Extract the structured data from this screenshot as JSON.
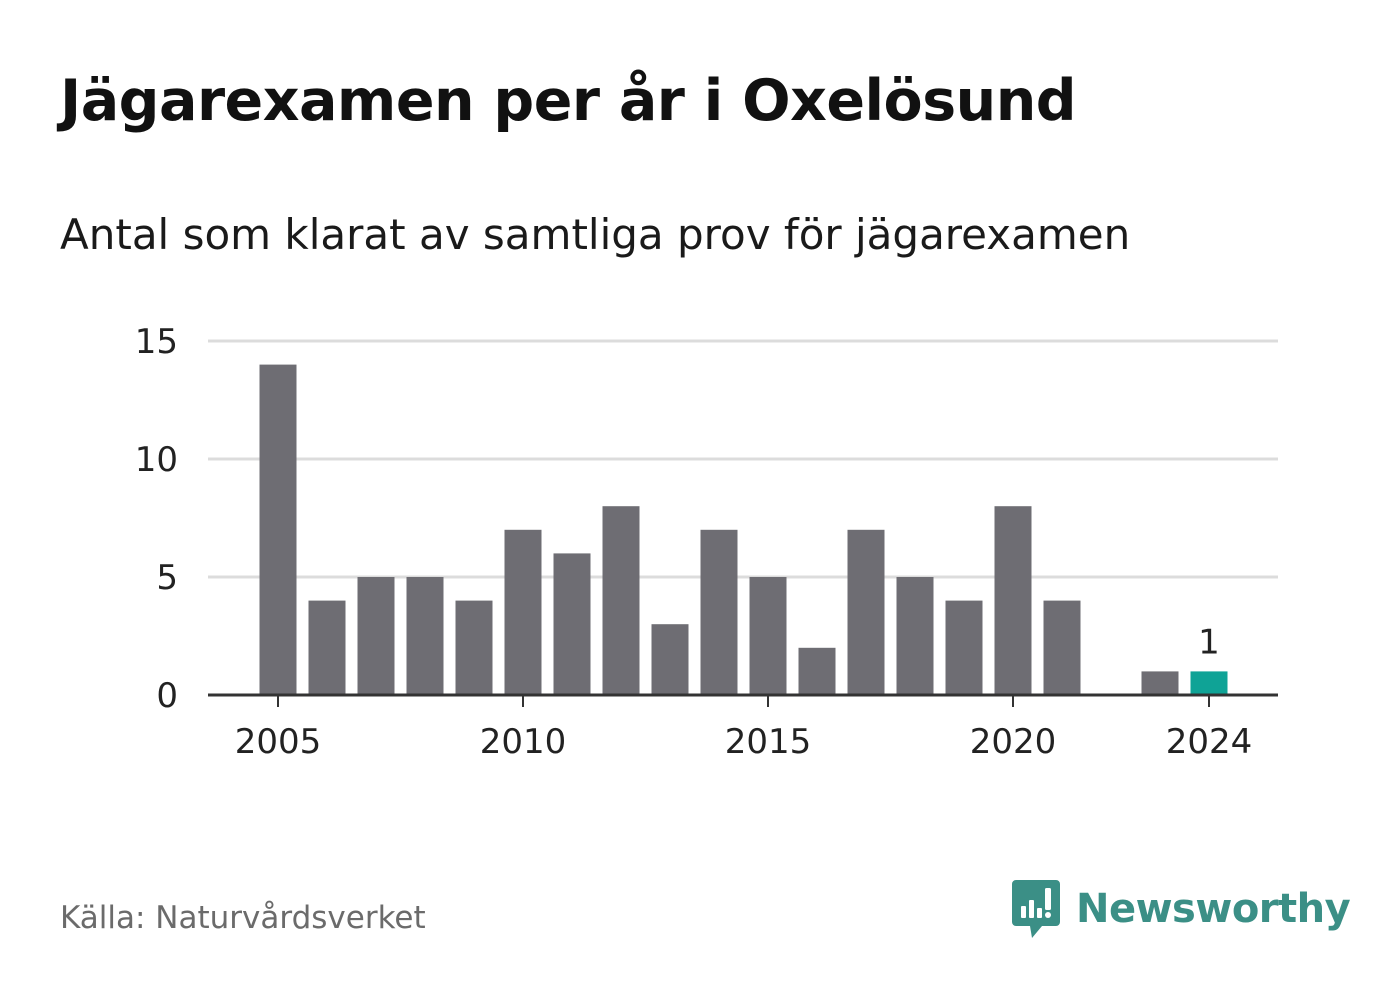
{
  "title": "Jägarexamen per år i Oxelösund",
  "subtitle": "Antal som klarat av samtliga prov för jägarexamen",
  "source": "Källa: Naturvårdsverket",
  "brand": {
    "name": "Newsworthy",
    "icon": "newsworthy-logo-icon",
    "color": "#3b8f86"
  },
  "colors": {
    "bar": "#6e6d73",
    "highlight": "#0fa396",
    "grid": "#dcdcdc",
    "axis": "#333333"
  },
  "chart_data": {
    "type": "bar",
    "x": [
      2005,
      2006,
      2007,
      2008,
      2009,
      2010,
      2011,
      2012,
      2013,
      2014,
      2015,
      2016,
      2017,
      2018,
      2019,
      2020,
      2021,
      2022,
      2023,
      2024
    ],
    "values": [
      14,
      4,
      5,
      5,
      4,
      7,
      6,
      8,
      3,
      7,
      5,
      2,
      7,
      5,
      4,
      8,
      4,
      0,
      1,
      1
    ],
    "highlight_x": 2024,
    "data_labels": [
      {
        "x": 2024,
        "text": "1"
      }
    ],
    "xticks": [
      "2005",
      "2010",
      "2015",
      "2020",
      "2024"
    ],
    "yticks": [
      "0",
      "5",
      "10",
      "15"
    ],
    "ylim": [
      0,
      15
    ],
    "xlabel": "",
    "ylabel": "",
    "grid": true,
    "legend": "none"
  }
}
